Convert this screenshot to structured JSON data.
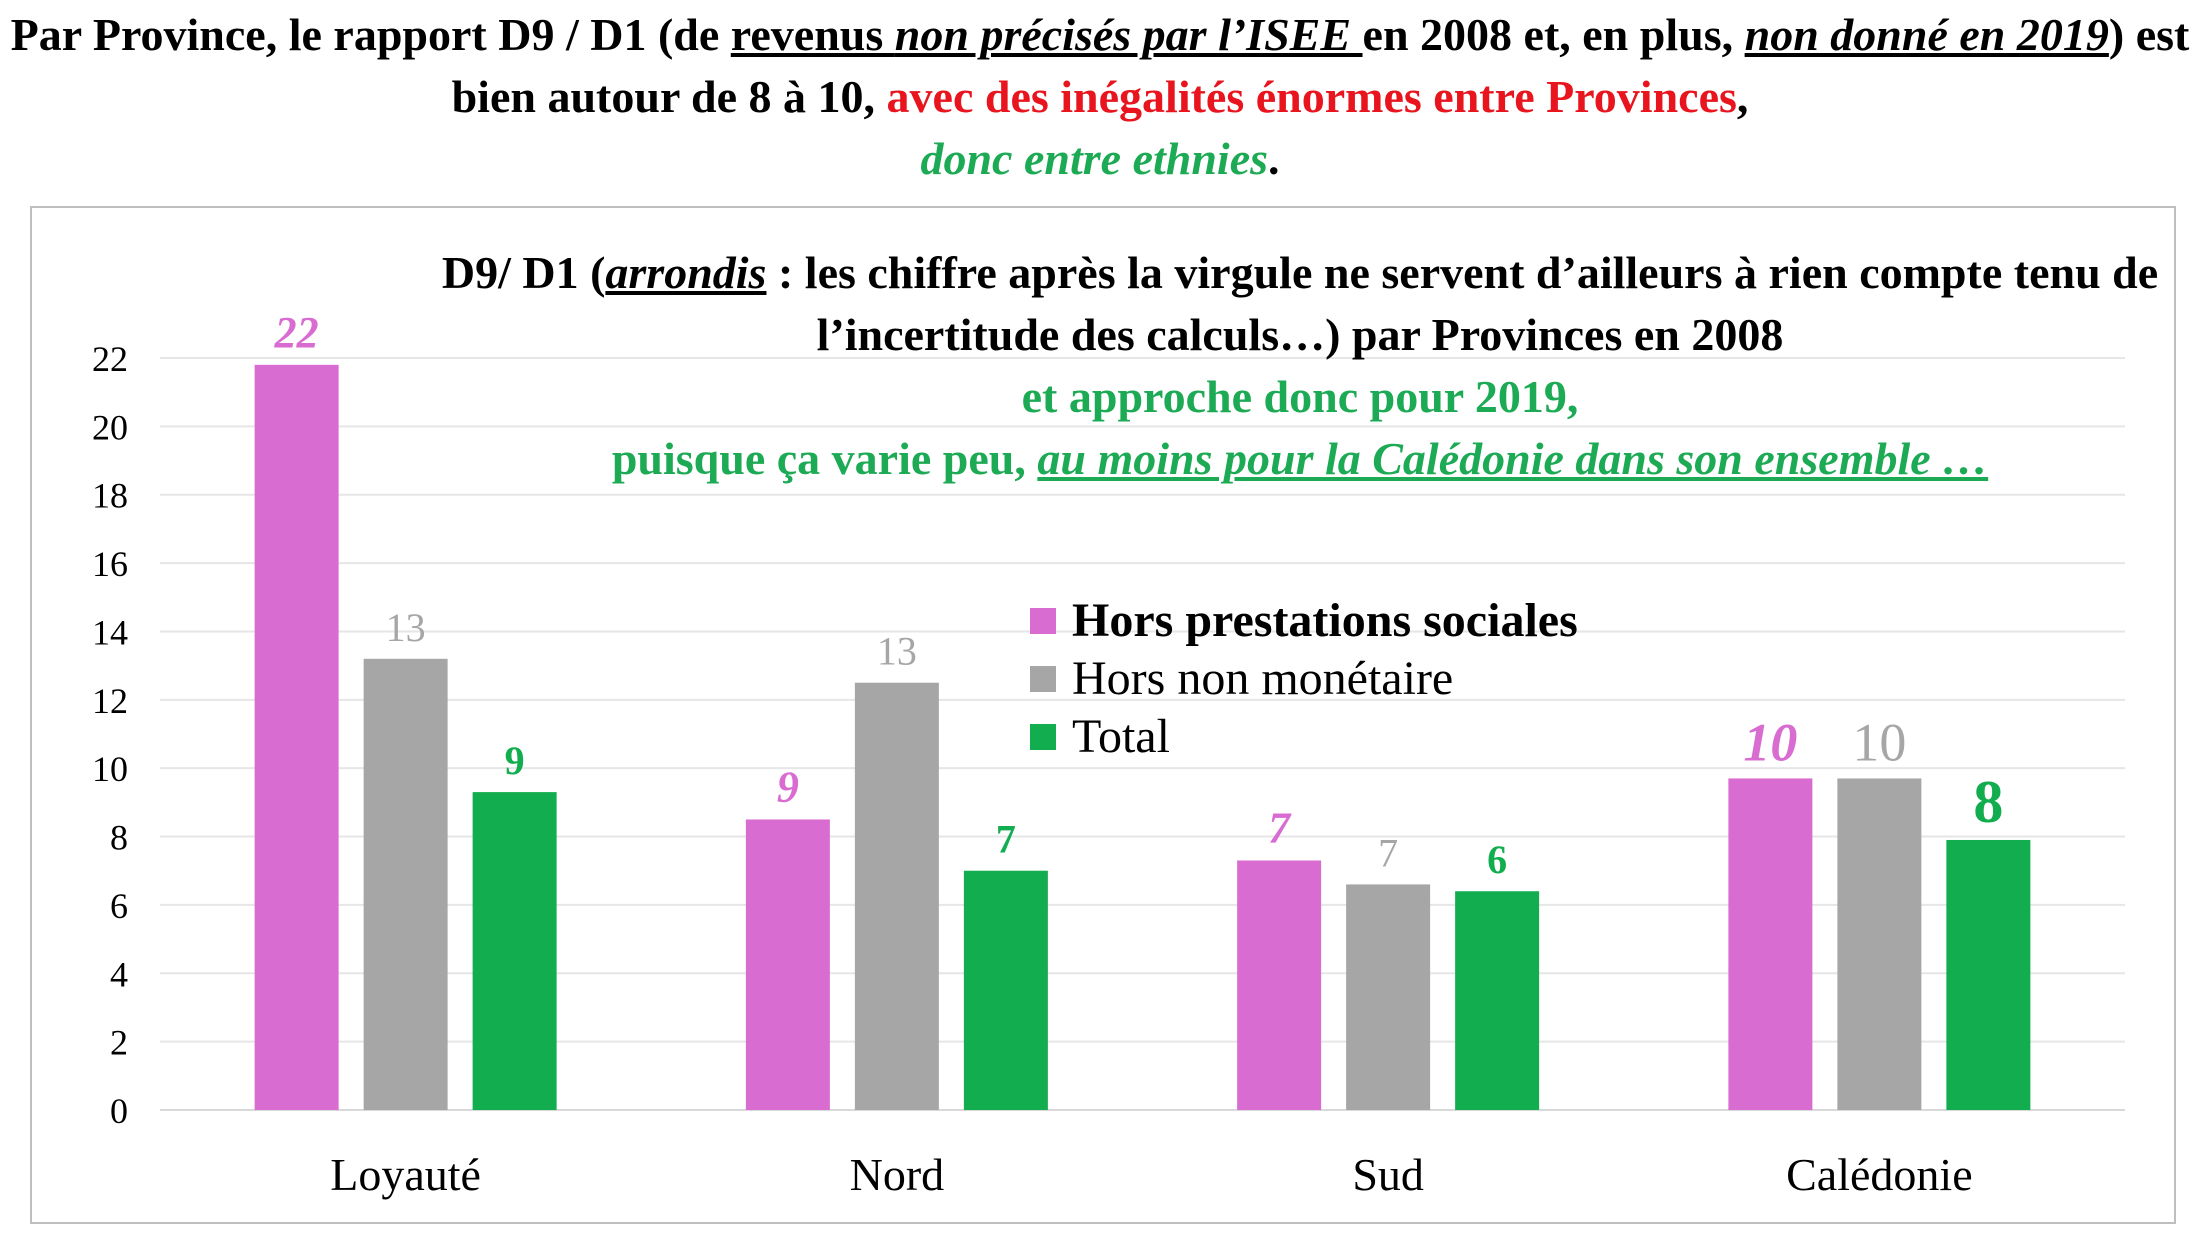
{
  "headline": {
    "p1": "Par Province, le rapport D9 / D1 (de ",
    "p2": "revenus ",
    "p3": "non précisés par l’ISEE ",
    "p4": "en 2008 et, en plus, ",
    "p5": "non donné en 2019",
    "p6": ") est bien autour de 8 à 10, ",
    "p7": "avec des inégalités énormes entre Provinces",
    "p8": ",",
    "p9": "donc entre ethnies",
    "p10": "."
  },
  "chart_data": {
    "type": "bar",
    "title_parts": {
      "t1": "D9/ D1 (",
      "t2": "arrondis",
      "t3": " : les chiffre après la virgule ne servent d’ailleurs à rien compte tenu de l’incertitude des calculs…) par Provinces en 2008",
      "t4": "et approche donc pour 2019,",
      "t5": "puisque ça varie peu, ",
      "t6": "au moins pour la Calédonie dans son ensemble …"
    },
    "categories": [
      "Loyauté",
      "Nord",
      "Sud",
      "Calédonie"
    ],
    "series": [
      {
        "name": "Hors prestations sociales",
        "color": "#d96cd1",
        "label_color": "#d96cd1",
        "values": [
          21.8,
          8.5,
          7.3,
          9.7
        ],
        "labels": [
          "22",
          "9",
          "7",
          "10"
        ]
      },
      {
        "name": "Hors non monétaire",
        "color": "#a6a6a6",
        "label_color": "#a6a6a6",
        "values": [
          13.2,
          12.5,
          6.6,
          9.7
        ],
        "labels": [
          "13",
          "13",
          "7",
          "10"
        ]
      },
      {
        "name": "Total",
        "color": "#12ad4f",
        "label_color": "#12ad4f",
        "values": [
          9.3,
          7.0,
          6.4,
          7.9
        ],
        "labels": [
          "9",
          "7",
          "6",
          "8"
        ]
      }
    ],
    "ylim": [
      0,
      22
    ],
    "yticks": [
      "0",
      "2",
      "4",
      "6",
      "8",
      "10",
      "12",
      "14",
      "16",
      "18",
      "20",
      "22"
    ],
    "grid": true,
    "legend_position": "center"
  }
}
